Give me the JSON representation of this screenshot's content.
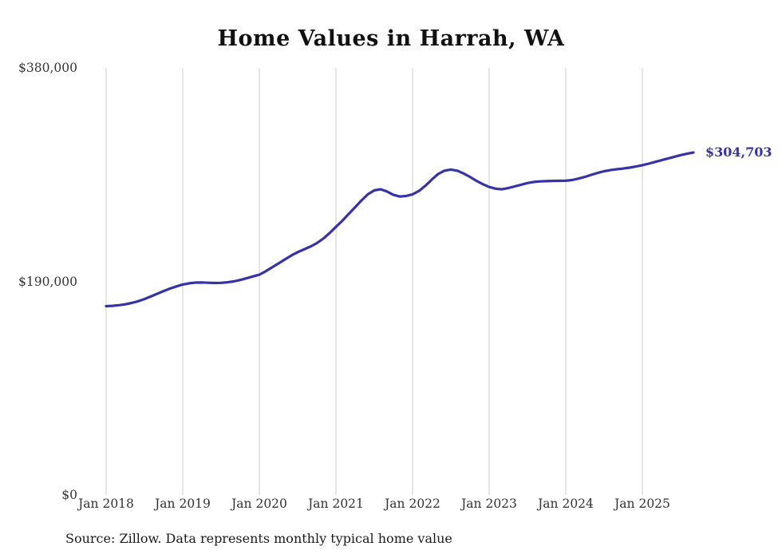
{
  "title": "Home Values in Harrah, WA",
  "chart_data": {
    "type": "line",
    "title": "Home Values in Harrah, WA",
    "unit": "USD",
    "frequency": "monthly",
    "x_start": "Jan 2018",
    "x_end": "Sep 2025",
    "series": [
      {
        "name": "Typical home value",
        "values": [
          168000,
          168300,
          168800,
          169600,
          170800,
          172300,
          174300,
          176600,
          179000,
          181400,
          183600,
          185500,
          187200,
          188300,
          188900,
          189000,
          188800,
          188600,
          188700,
          189200,
          190000,
          191300,
          192800,
          194400,
          196000,
          199000,
          202500,
          206000,
          209500,
          213000,
          216000,
          218500,
          221000,
          224000,
          228000,
          233000,
          238500,
          244000,
          250000,
          256000,
          262000,
          267500,
          271000,
          272000,
          270000,
          267000,
          265500,
          266000,
          267500,
          270500,
          275000,
          280500,
          285500,
          288500,
          289500,
          288500,
          286000,
          283000,
          279500,
          276500,
          274000,
          272500,
          272000,
          273000,
          274500,
          276000,
          277500,
          278500,
          279000,
          279200,
          279400,
          279500,
          279600,
          280200,
          281500,
          283000,
          284800,
          286500,
          288000,
          289000,
          289800,
          290400,
          291200,
          292200,
          293400,
          294800,
          296300,
          297800,
          299300,
          300900,
          302400,
          303600,
          304703
        ]
      }
    ],
    "x_tick_labels": [
      "Jan 2018",
      "Jan 2019",
      "Jan 2020",
      "Jan 2021",
      "Jan 2022",
      "Jan 2023",
      "Jan 2024",
      "Jan 2025"
    ],
    "x_tick_month_indices": [
      0,
      12,
      24,
      36,
      48,
      60,
      72,
      84
    ],
    "y_ticks": [
      {
        "value": 0,
        "label": "$0"
      },
      {
        "value": 190000,
        "label": "$190,000"
      },
      {
        "value": 380000,
        "label": "$380,000"
      }
    ],
    "y_max": 380000,
    "ylim": [
      0,
      380000
    ],
    "end_label": "$304,703",
    "final_value": 304703,
    "line_color": "#3632a8",
    "grid_color": "#cccccc",
    "grid": "vertical-only",
    "legend_position": "none"
  },
  "footer": {
    "source": "Source: Zillow. Data represents monthly typical home value"
  }
}
